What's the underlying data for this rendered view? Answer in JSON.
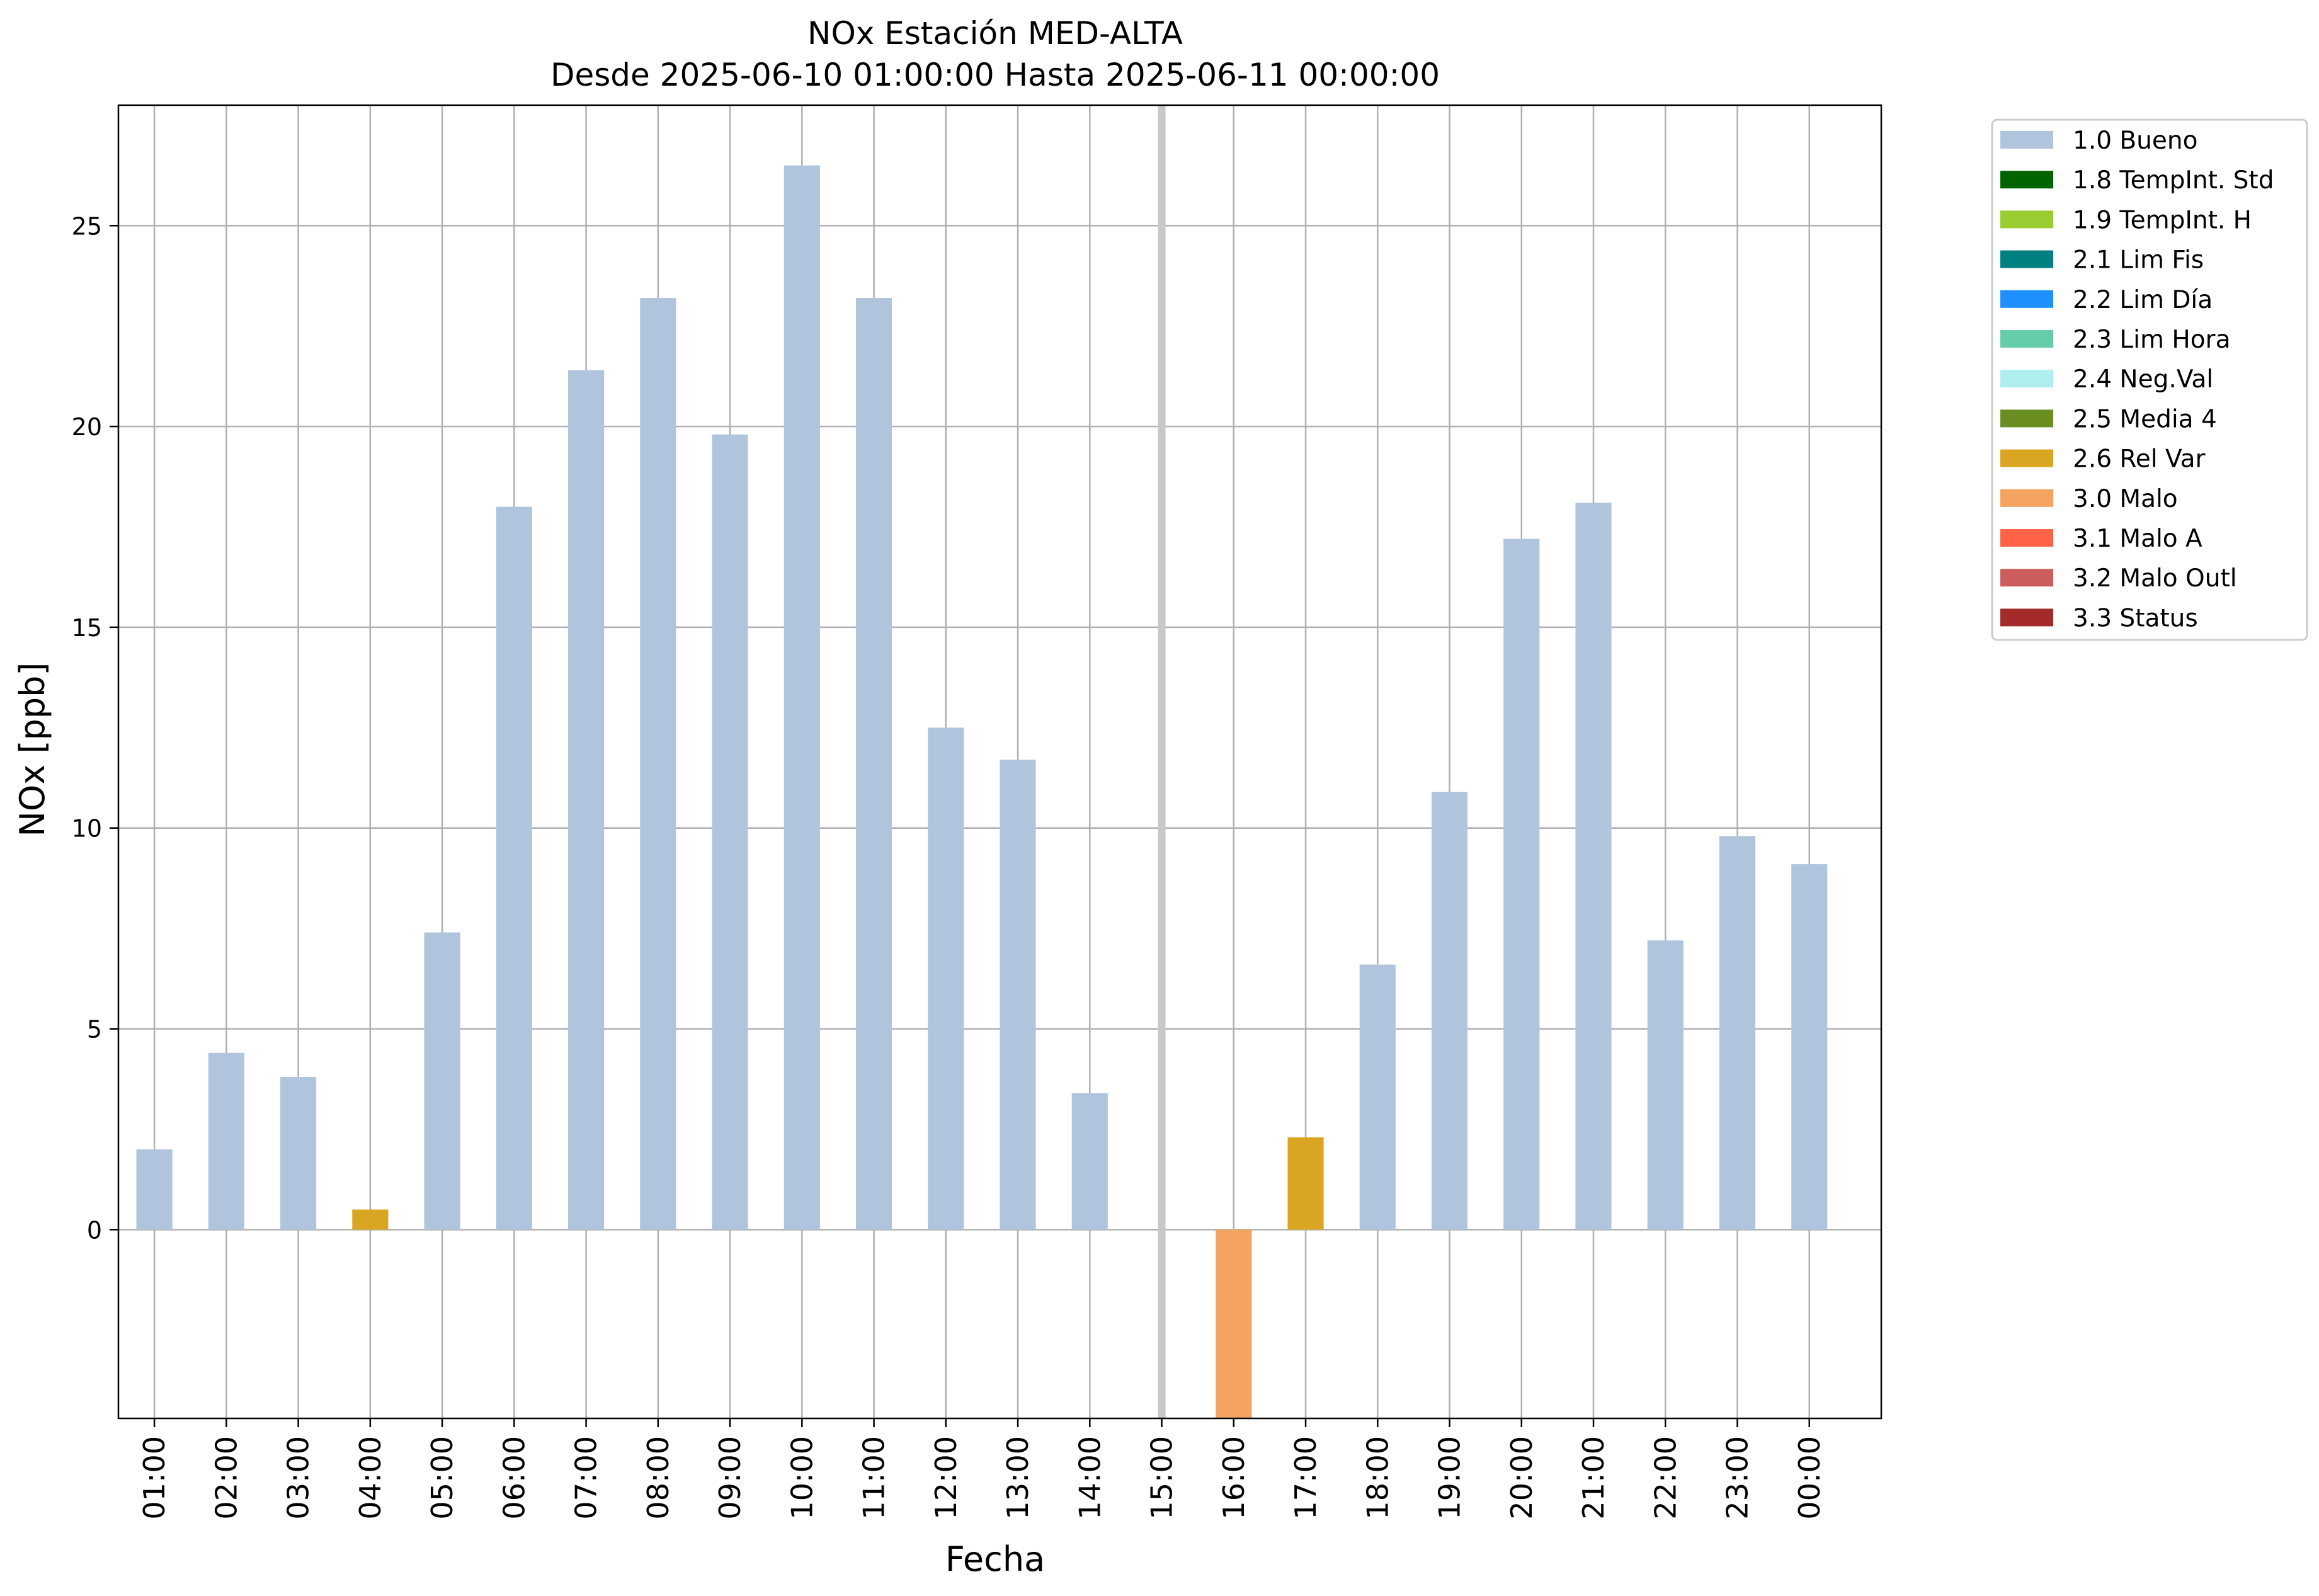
{
  "chart_data": {
    "type": "bar",
    "title": "NOx Estación MED-ALTA",
    "subtitle": "Desde 2025-06-10 01:00:00 Hasta 2025-06-11 00:00:00",
    "xlabel": "Fecha",
    "ylabel": "NOx [ppb]",
    "ylim": [
      -4.7,
      28.0
    ],
    "yticks": [
      0,
      5,
      10,
      15,
      20,
      25
    ],
    "grid": true,
    "legend_placement": "outside-top-right",
    "categories": [
      "01:00",
      "02:00",
      "03:00",
      "04:00",
      "05:00",
      "06:00",
      "07:00",
      "08:00",
      "09:00",
      "10:00",
      "11:00",
      "12:00",
      "13:00",
      "14:00",
      "15:00",
      "16:00",
      "17:00",
      "18:00",
      "19:00",
      "20:00",
      "21:00",
      "22:00",
      "23:00",
      "00:00"
    ],
    "values": [
      2.0,
      4.4,
      3.8,
      0.5,
      7.4,
      18.0,
      21.4,
      23.2,
      19.8,
      26.5,
      23.2,
      12.5,
      11.7,
      3.4,
      null,
      -4.7,
      2.3,
      6.6,
      10.9,
      17.2,
      18.1,
      7.2,
      9.8,
      9.1
    ],
    "flags": [
      "1.0 Bueno",
      "1.0 Bueno",
      "1.0 Bueno",
      "2.6 Rel Var",
      "1.0 Bueno",
      "1.0 Bueno",
      "1.0 Bueno",
      "1.0 Bueno",
      "1.0 Bueno",
      "1.0 Bueno",
      "1.0 Bueno",
      "1.0 Bueno",
      "1.0 Bueno",
      "1.0 Bueno",
      null,
      "3.0 Malo",
      "2.6 Rel Var",
      "1.0 Bueno",
      "1.0 Bueno",
      "1.0 Bueno",
      "1.0 Bueno",
      "1.0 Bueno",
      "1.0 Bueno",
      "1.0 Bueno"
    ],
    "missing_marker_category": "15:00",
    "legend": [
      {
        "label": "1.0 Bueno",
        "color": "#b0c4de"
      },
      {
        "label": "1.8 TempInt. Std",
        "color": "#006400"
      },
      {
        "label": "1.9 TempInt. H",
        "color": "#9acd32"
      },
      {
        "label": "2.1 Lim Fis",
        "color": "#008080"
      },
      {
        "label": "2.2 Lim Día",
        "color": "#1e90ff"
      },
      {
        "label": "2.3 Lim Hora",
        "color": "#66cdaa"
      },
      {
        "label": "2.4 Neg.Val",
        "color": "#afeeee"
      },
      {
        "label": "2.5 Media 4",
        "color": "#6b8e23"
      },
      {
        "label": "2.6 Rel Var",
        "color": "#daa520"
      },
      {
        "label": "3.0 Malo",
        "color": "#f4a460"
      },
      {
        "label": "3.1 Malo A",
        "color": "#ff6347"
      },
      {
        "label": "3.2 Malo Outl",
        "color": "#cd5c5c"
      },
      {
        "label": "3.3 Status",
        "color": "#a52a2a"
      }
    ]
  }
}
